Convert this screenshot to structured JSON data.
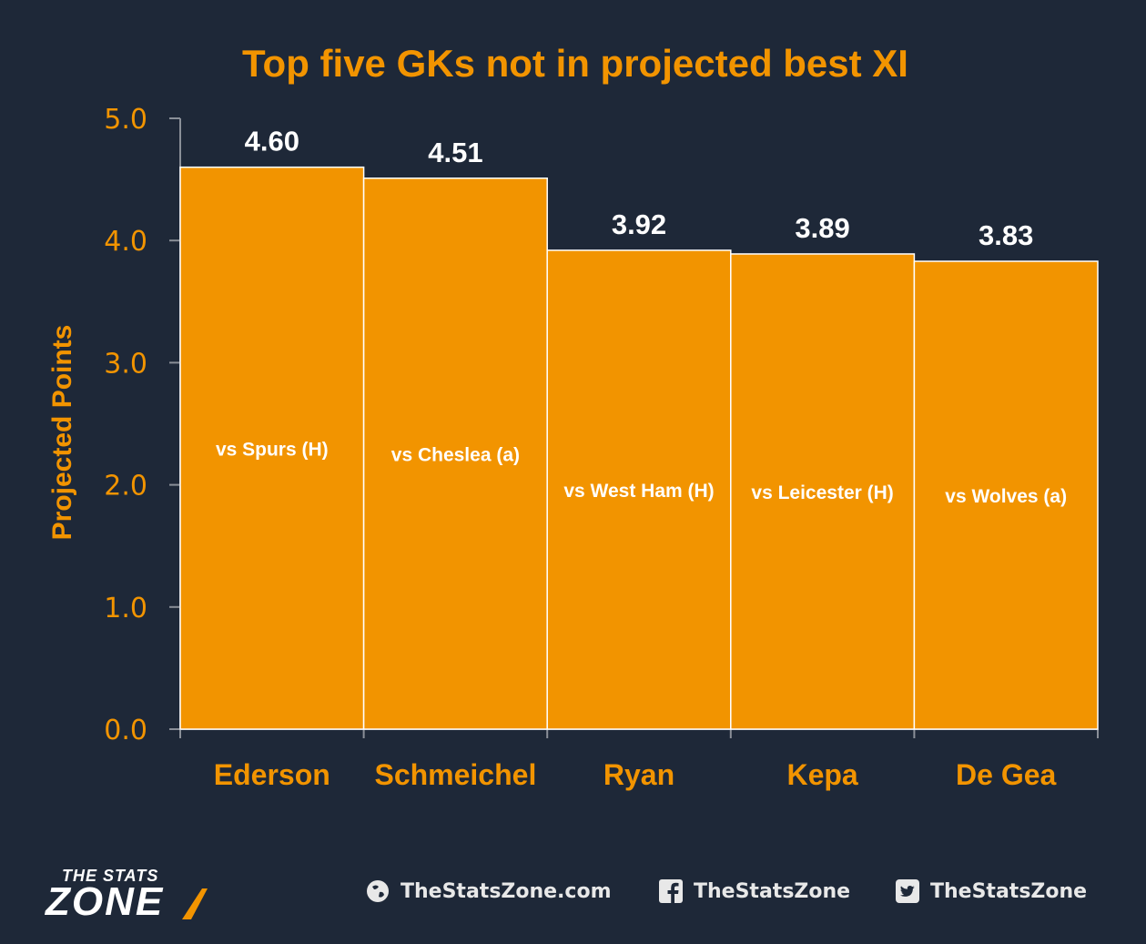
{
  "chart_data": {
    "type": "bar",
    "title": "Top five GKs not in projected best XI",
    "xlabel": "",
    "ylabel": "Projected Points",
    "ylim": [
      0,
      5
    ],
    "yticks": [
      "0.0",
      "1.0",
      "2.0",
      "3.0",
      "4.0",
      "5.0"
    ],
    "categories": [
      "Ederson",
      "Schmeichel",
      "Ryan",
      "Kepa",
      "De Gea"
    ],
    "values": [
      4.6,
      4.51,
      3.92,
      3.89,
      3.83
    ],
    "value_labels": [
      "4.60",
      "4.51",
      "3.92",
      "3.89",
      "3.83"
    ],
    "bar_annotations": [
      "vs Spurs (H)",
      "vs Cheslea (a)",
      "vs West Ham (H)",
      "vs Leicester (H)",
      "vs Wolves (a)"
    ],
    "grid": false,
    "legend": "none"
  },
  "colors": {
    "background": "#1e2838",
    "bar": "#f29400",
    "bar_edge": "#ffffff",
    "accent_text": "#f29400",
    "value_text": "#ffffff",
    "axis": "#8a8f98"
  },
  "brand": {
    "logo_line1": "THE STATS",
    "logo_line2": "ZONE"
  },
  "social": [
    {
      "icon": "globe-icon",
      "label": "TheStatsZone.com"
    },
    {
      "icon": "facebook-icon",
      "label": "TheStatsZone"
    },
    {
      "icon": "twitter-icon",
      "label": "TheStatsZone"
    }
  ]
}
